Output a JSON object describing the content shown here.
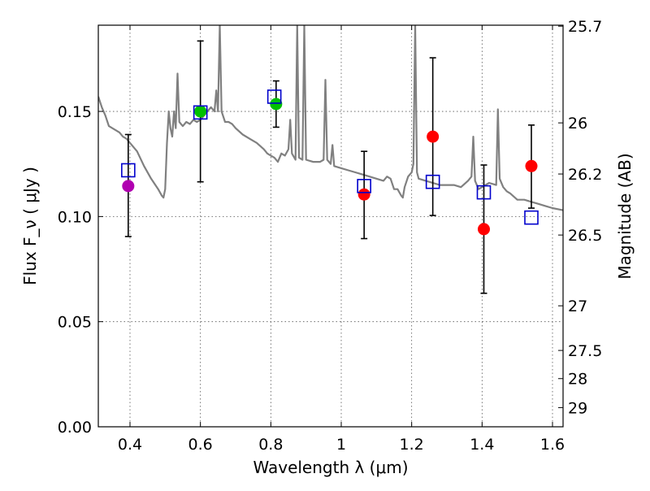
{
  "chart_data": {
    "type": "scatter",
    "xlabel": "Wavelength  λ (μm)",
    "ylabel": "Flux  F_ν  ( μJy )",
    "ylabel_right": "Magnitude (AB)",
    "xlim": [
      0.31,
      1.63
    ],
    "ylim": [
      0.0,
      0.191
    ],
    "grid": true,
    "x_ticks": [
      0.4,
      0.6,
      0.8,
      1.0,
      1.2,
      1.4,
      1.6
    ],
    "x_tick_labels": [
      "0.4",
      "0.6",
      "0.8",
      "1",
      "1.2",
      "1.4",
      "1.6"
    ],
    "y_ticks": [
      0.0,
      0.05,
      0.1,
      0.15
    ],
    "y_tick_labels": [
      "0.00",
      "0.05",
      "0.10",
      "0.15"
    ],
    "mag_ticks": [
      25.7,
      26,
      26.2,
      26.5,
      27,
      27.5,
      28,
      29
    ],
    "mag_tick_labels": [
      "25.7",
      "26",
      "26.2",
      "26.5",
      "27",
      "27.5",
      "28",
      "29"
    ],
    "measured_points": [
      {
        "x": 0.395,
        "y": 0.1145,
        "yerr_low": 0.0905,
        "yerr_high": 0.139,
        "color": "#b000b0"
      },
      {
        "x": 0.6,
        "y": 0.15,
        "yerr_low": 0.1165,
        "yerr_high": 0.1835,
        "color": "#00c000"
      },
      {
        "x": 0.815,
        "y": 0.1535,
        "yerr_low": 0.1425,
        "yerr_high": 0.1645,
        "color": "#00c000"
      },
      {
        "x": 1.065,
        "y": 0.1105,
        "yerr_low": 0.0895,
        "yerr_high": 0.131,
        "color": "#ff0000"
      },
      {
        "x": 1.26,
        "y": 0.138,
        "yerr_low": 0.1005,
        "yerr_high": 0.1755,
        "color": "#ff0000"
      },
      {
        "x": 1.405,
        "y": 0.094,
        "yerr_low": 0.0635,
        "yerr_high": 0.1245,
        "color": "#ff0000"
      },
      {
        "x": 1.54,
        "y": 0.124,
        "yerr_low": 0.104,
        "yerr_high": 0.1435,
        "color": "#ff0000"
      }
    ],
    "model_points": [
      {
        "x": 0.395,
        "y": 0.122
      },
      {
        "x": 0.6,
        "y": 0.1495
      },
      {
        "x": 0.81,
        "y": 0.157
      },
      {
        "x": 1.065,
        "y": 0.1145
      },
      {
        "x": 1.26,
        "y": 0.1165
      },
      {
        "x": 1.405,
        "y": 0.1115
      },
      {
        "x": 1.54,
        "y": 0.0995
      }
    ],
    "model_color": "#0000cc",
    "spectrum_color": "#808080",
    "spectrum": [
      [
        0.31,
        0.157
      ],
      [
        0.32,
        0.152
      ],
      [
        0.33,
        0.148
      ],
      [
        0.34,
        0.143
      ],
      [
        0.35,
        0.142
      ],
      [
        0.36,
        0.141
      ],
      [
        0.37,
        0.14
      ],
      [
        0.38,
        0.138
      ],
      [
        0.39,
        0.137
      ],
      [
        0.4,
        0.135
      ],
      [
        0.42,
        0.131
      ],
      [
        0.44,
        0.124
      ],
      [
        0.46,
        0.118
      ],
      [
        0.48,
        0.113
      ],
      [
        0.49,
        0.11
      ],
      [
        0.495,
        0.109
      ],
      [
        0.5,
        0.113
      ],
      [
        0.505,
        0.135
      ],
      [
        0.51,
        0.15
      ],
      [
        0.515,
        0.142
      ],
      [
        0.52,
        0.138
      ],
      [
        0.525,
        0.15
      ],
      [
        0.53,
        0.142
      ],
      [
        0.535,
        0.168
      ],
      [
        0.54,
        0.145
      ],
      [
        0.545,
        0.144
      ],
      [
        0.55,
        0.143
      ],
      [
        0.56,
        0.145
      ],
      [
        0.57,
        0.144
      ],
      [
        0.58,
        0.146
      ],
      [
        0.59,
        0.145
      ],
      [
        0.6,
        0.146
      ],
      [
        0.61,
        0.148
      ],
      [
        0.62,
        0.15
      ],
      [
        0.63,
        0.152
      ],
      [
        0.64,
        0.15
      ],
      [
        0.645,
        0.16
      ],
      [
        0.65,
        0.15
      ],
      [
        0.655,
        0.191
      ],
      [
        0.66,
        0.15
      ],
      [
        0.67,
        0.145
      ],
      [
        0.68,
        0.145
      ],
      [
        0.69,
        0.144
      ],
      [
        0.7,
        0.142
      ],
      [
        0.72,
        0.139
      ],
      [
        0.74,
        0.137
      ],
      [
        0.76,
        0.135
      ],
      [
        0.78,
        0.132
      ],
      [
        0.79,
        0.13
      ],
      [
        0.8,
        0.129
      ],
      [
        0.81,
        0.128
      ],
      [
        0.82,
        0.126
      ],
      [
        0.83,
        0.13
      ],
      [
        0.84,
        0.129
      ],
      [
        0.85,
        0.132
      ],
      [
        0.855,
        0.146
      ],
      [
        0.86,
        0.13
      ],
      [
        0.87,
        0.127
      ],
      [
        0.875,
        0.191
      ],
      [
        0.88,
        0.128
      ],
      [
        0.89,
        0.127
      ],
      [
        0.895,
        0.191
      ],
      [
        0.9,
        0.127
      ],
      [
        0.92,
        0.126
      ],
      [
        0.94,
        0.126
      ],
      [
        0.95,
        0.127
      ],
      [
        0.955,
        0.165
      ],
      [
        0.96,
        0.127
      ],
      [
        0.97,
        0.125
      ],
      [
        0.975,
        0.134
      ],
      [
        0.98,
        0.124
      ],
      [
        1.0,
        0.123
      ],
      [
        1.02,
        0.122
      ],
      [
        1.04,
        0.121
      ],
      [
        1.06,
        0.12
      ],
      [
        1.08,
        0.119
      ],
      [
        1.1,
        0.118
      ],
      [
        1.12,
        0.117
      ],
      [
        1.13,
        0.119
      ],
      [
        1.14,
        0.118
      ],
      [
        1.15,
        0.113
      ],
      [
        1.16,
        0.113
      ],
      [
        1.17,
        0.11
      ],
      [
        1.175,
        0.109
      ],
      [
        1.18,
        0.114
      ],
      [
        1.19,
        0.119
      ],
      [
        1.2,
        0.121
      ],
      [
        1.205,
        0.125
      ],
      [
        1.21,
        0.191
      ],
      [
        1.215,
        0.121
      ],
      [
        1.22,
        0.118
      ],
      [
        1.24,
        0.117
      ],
      [
        1.26,
        0.116
      ],
      [
        1.28,
        0.115
      ],
      [
        1.3,
        0.115
      ],
      [
        1.32,
        0.115
      ],
      [
        1.34,
        0.114
      ],
      [
        1.36,
        0.117
      ],
      [
        1.37,
        0.119
      ],
      [
        1.375,
        0.138
      ],
      [
        1.38,
        0.117
      ],
      [
        1.39,
        0.113
      ],
      [
        1.4,
        0.114
      ],
      [
        1.42,
        0.116
      ],
      [
        1.44,
        0.115
      ],
      [
        1.445,
        0.151
      ],
      [
        1.45,
        0.118
      ],
      [
        1.46,
        0.114
      ],
      [
        1.47,
        0.112
      ],
      [
        1.48,
        0.111
      ],
      [
        1.5,
        0.108
      ],
      [
        1.52,
        0.108
      ],
      [
        1.54,
        0.107
      ],
      [
        1.56,
        0.106
      ],
      [
        1.58,
        0.105
      ],
      [
        1.6,
        0.104
      ],
      [
        1.63,
        0.103
      ]
    ]
  }
}
